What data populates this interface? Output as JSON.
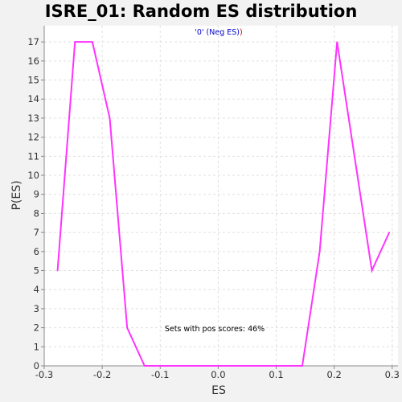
{
  "chart_data": {
    "type": "line",
    "title": "ISRE_01: Random ES distribution",
    "xlabel": "ES",
    "ylabel": "P(ES)",
    "xlim": [
      -0.3,
      0.31
    ],
    "ylim": [
      0,
      17.85
    ],
    "xticks": [
      -0.3,
      -0.2,
      -0.1,
      0.0,
      0.1,
      0.2,
      0.3
    ],
    "xtick_labels": [
      "-0.3",
      "-0.2",
      "-0.1",
      "0.0",
      "0.1",
      "0.2",
      "0.3"
    ],
    "yticks": [
      0,
      1,
      2,
      3,
      4,
      5,
      6,
      7,
      8,
      9,
      10,
      11,
      12,
      13,
      14,
      15,
      16,
      17
    ],
    "ytick_labels": [
      "0",
      "1",
      "2",
      "3",
      "4",
      "5",
      "6",
      "7",
      "8",
      "9",
      "10",
      "11",
      "12",
      "13",
      "14",
      "15",
      "16",
      "17"
    ],
    "grid": true,
    "legend": {
      "placement": "top-center",
      "prefix": "'0' (Neg ES)",
      "suffix": ")"
    },
    "annotation": "Sets with pos scores: 46%",
    "series": [
      {
        "color": "#ff33ff",
        "x": [
          -0.277,
          -0.247,
          -0.217,
          -0.187,
          -0.157,
          -0.127,
          0.145,
          0.175,
          0.205,
          0.235,
          0.265,
          0.295
        ],
        "y": [
          5,
          17,
          17,
          13,
          2,
          0,
          0,
          6,
          17,
          11,
          5,
          7
        ]
      }
    ]
  },
  "colors": {
    "plot_background": "#ffffff",
    "page_background": "#f2f2f2",
    "grid": "#e0e0e0",
    "axis": "#888888"
  }
}
